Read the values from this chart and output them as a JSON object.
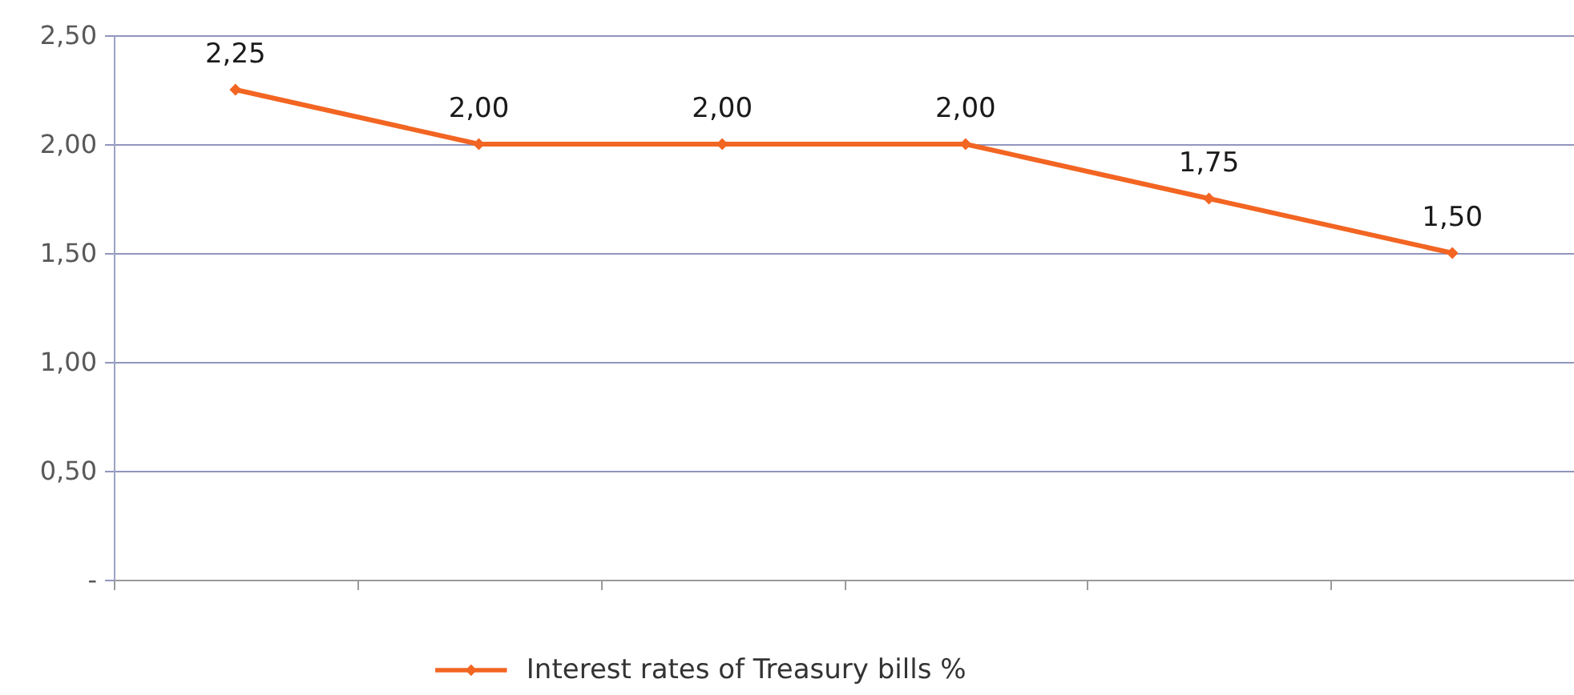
{
  "chart_data": {
    "type": "line",
    "categories": [
      null,
      null,
      null,
      null,
      null,
      null
    ],
    "series": [
      {
        "name": "Interest rates of Treasury bills %",
        "color": "#f26522",
        "values": [
          2.25,
          2.0,
          2.0,
          2.0,
          1.75,
          1.5
        ],
        "value_labels": [
          "2,25",
          "2,00",
          "2,00",
          "2,00",
          "1,75",
          "1,50"
        ]
      }
    ],
    "ylim": [
      0,
      2.5
    ],
    "yticks": [
      {
        "value": 0,
        "label": "-"
      },
      {
        "value": 0.5,
        "label": "0,50"
      },
      {
        "value": 1,
        "label": "1,00"
      },
      {
        "value": 1.5,
        "label": "1,50"
      },
      {
        "value": 2,
        "label": "2,00"
      },
      {
        "value": 2.5,
        "label": "2,50"
      }
    ],
    "grid": "y",
    "legend": "bottom",
    "marker": "diamond",
    "line_style": "solid",
    "tick_labels": "y"
  }
}
